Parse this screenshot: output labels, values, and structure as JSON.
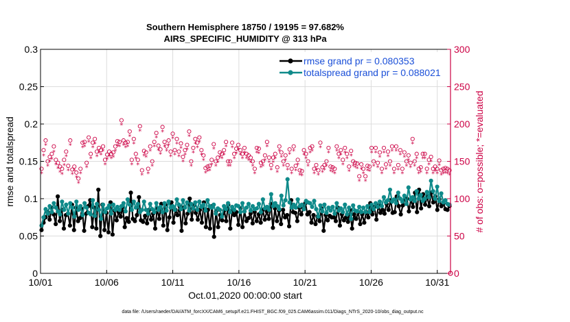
{
  "chart_data": {
    "type": "line",
    "title_line1": "Southern Hemisphere 18750 / 19195 = 97.682%",
    "title_line2": "AIRS_SPECIFIC_HUMIDITY @ 313 hPa",
    "xlabel": "Oct.01,2020 00:00:00 start",
    "ylabel_left": "rmse and totalspread",
    "ylabel_right": "# of obs: o=possible; *=evaluated",
    "xlim": [
      0,
      31
    ],
    "ylim_left": [
      0,
      0.3
    ],
    "ylim_right": [
      0,
      300
    ],
    "x_ticks": [
      0,
      5,
      10,
      15,
      20,
      25,
      30
    ],
    "x_tick_labels": [
      "10/01",
      "10/06",
      "10/11",
      "10/16",
      "10/21",
      "10/26",
      "10/31"
    ],
    "y_left_ticks": [
      0,
      0.05,
      0.1,
      0.15,
      0.2,
      0.25,
      0.3
    ],
    "y_left_tick_labels": [
      "0",
      "0.05",
      "0.1",
      "0.15",
      "0.2",
      "0.25",
      "0.3"
    ],
    "y_right_ticks": [
      0,
      50,
      100,
      150,
      200,
      250,
      300
    ],
    "y_right_tick_labels": [
      "0",
      "50",
      "100",
      "150",
      "200",
      "250",
      "300"
    ],
    "grid": true,
    "legend_position": "top-right",
    "series": [
      {
        "name": "rmse grand pr = 0.080353",
        "color": "#000000",
        "axis": "left",
        "values": [
          0.058,
          0.068,
          0.075,
          0.082,
          0.072,
          0.088,
          0.079,
          0.066,
          0.103,
          0.07,
          0.085,
          0.06,
          0.078,
          0.08,
          0.064,
          0.092,
          0.058,
          0.088,
          0.07,
          0.074,
          0.086,
          0.057,
          0.08,
          0.09,
          0.098,
          0.062,
          0.088,
          0.06,
          0.112,
          0.05,
          0.092,
          0.058,
          0.081,
          0.055,
          0.095,
          0.052,
          0.084,
          0.071,
          0.082,
          0.076,
          0.089,
          0.062,
          0.074,
          0.069,
          0.108,
          0.073,
          0.07,
          0.078,
          0.102,
          0.071,
          0.069,
          0.077,
          0.067,
          0.085,
          0.072,
          0.08,
          0.06,
          0.087,
          0.073,
          0.093,
          0.064,
          0.092,
          0.058,
          0.075,
          0.095,
          0.068,
          0.085,
          0.078,
          0.09,
          0.057,
          0.088,
          0.067,
          0.08,
          0.1,
          0.072,
          0.091,
          0.081,
          0.072,
          0.085,
          0.068,
          0.095,
          0.062,
          0.085,
          0.06,
          0.09,
          0.049,
          0.083,
          0.062,
          0.078,
          0.071,
          0.084,
          0.07,
          0.092,
          0.06,
          0.085,
          0.078,
          0.082,
          0.065,
          0.087,
          0.062,
          0.083,
          0.07,
          0.074,
          0.08,
          0.067,
          0.082,
          0.07,
          0.079,
          0.068,
          0.085,
          0.072,
          0.083,
          0.073,
          0.093,
          0.061,
          0.087,
          0.07,
          0.084,
          0.066,
          0.085,
          0.075,
          0.078,
          0.063,
          0.098,
          0.082,
          0.081,
          0.07,
          0.088,
          0.079,
          0.087,
          0.094,
          0.079,
          0.082,
          0.068,
          0.078,
          0.066,
          0.076,
          0.07,
          0.087,
          0.057,
          0.078,
          0.071,
          0.077,
          0.075,
          0.075,
          0.07,
          0.088,
          0.064,
          0.079,
          0.071,
          0.075,
          0.069,
          0.085,
          0.06,
          0.079,
          0.073,
          0.082,
          0.066,
          0.079,
          0.068,
          0.082,
          0.075,
          0.094,
          0.079,
          0.089,
          0.072,
          0.091,
          0.081,
          0.085,
          0.08,
          0.093,
          0.085,
          0.098,
          0.081,
          0.082,
          0.103,
          0.09,
          0.079,
          0.091,
          0.099,
          0.1,
          0.083,
          0.099,
          0.089,
          0.108,
          0.082,
          0.112,
          0.087,
          0.106,
          0.092,
          0.103,
          0.09,
          0.108,
          0.095,
          0.103,
          0.085,
          0.099,
          0.09,
          0.094,
          0.086,
          0.085,
          0.09
        ]
      },
      {
        "name": "totalspread grand pr = 0.088021",
        "color": "#0f8a8a",
        "axis": "left",
        "values": [
          0.064,
          0.075,
          0.086,
          0.08,
          0.09,
          0.082,
          0.094,
          0.088,
          0.083,
          0.079,
          0.096,
          0.085,
          0.092,
          0.08,
          0.094,
          0.088,
          0.076,
          0.096,
          0.085,
          0.09,
          0.078,
          0.094,
          0.088,
          0.081,
          0.079,
          0.098,
          0.077,
          0.093,
          0.085,
          0.073,
          0.092,
          0.082,
          0.087,
          0.091,
          0.08,
          0.092,
          0.085,
          0.089,
          0.085,
          0.09,
          0.094,
          0.083,
          0.099,
          0.092,
          0.085,
          0.096,
          0.088,
          0.093,
          0.082,
          0.085,
          0.096,
          0.085,
          0.08,
          0.093,
          0.086,
          0.082,
          0.094,
          0.085,
          0.089,
          0.082,
          0.094,
          0.084,
          0.096,
          0.088,
          0.09,
          0.085,
          0.099,
          0.092,
          0.086,
          0.098,
          0.088,
          0.095,
          0.084,
          0.093,
          0.087,
          0.095,
          0.085,
          0.096,
          0.089,
          0.092,
          0.084,
          0.098,
          0.09,
          0.088,
          0.092,
          0.08,
          0.087,
          0.085,
          0.076,
          0.09,
          0.086,
          0.094,
          0.082,
          0.089,
          0.085,
          0.091,
          0.09,
          0.082,
          0.094,
          0.083,
          0.088,
          0.093,
          0.084,
          0.09,
          0.086,
          0.087,
          0.093,
          0.082,
          0.099,
          0.087,
          0.089,
          0.085,
          0.106,
          0.09,
          0.094,
          0.09,
          0.086,
          0.104,
          0.091,
          0.098,
          0.126,
          0.095,
          0.088,
          0.092,
          0.088,
          0.099,
          0.09,
          0.092,
          0.086,
          0.097,
          0.095,
          0.094,
          0.089,
          0.097,
          0.086,
          0.076,
          0.091,
          0.083,
          0.092,
          0.081,
          0.088,
          0.084,
          0.089,
          0.08,
          0.094,
          0.084,
          0.087,
          0.082,
          0.092,
          0.079,
          0.088,
          0.073,
          0.091,
          0.084,
          0.083,
          0.089,
          0.082,
          0.088,
          0.082,
          0.09,
          0.082,
          0.092,
          0.086,
          0.094,
          0.089,
          0.096,
          0.09,
          0.102,
          0.095,
          0.098,
          0.112,
          0.096,
          0.099,
          0.094,
          0.108,
          0.1,
          0.096,
          0.104,
          0.093,
          0.115,
          0.099,
          0.102,
          0.097,
          0.11,
          0.1,
          0.105,
          0.097,
          0.1,
          0.109,
          0.102,
          0.124,
          0.11,
          0.1,
          0.116,
          0.097,
          0.107,
          0.095,
          0.098,
          0.093,
          0.092
        ]
      },
      {
        "name": "possible",
        "color": "#cc0044",
        "axis": "right",
        "marker": "o",
        "values": [
          140,
          165,
          178,
          150,
          156,
          160,
          170,
          152,
          148,
          143,
          140,
          152,
          163,
          144,
          178,
          139,
          143,
          135,
          127,
          140,
          175,
          176,
          148,
          182,
          160,
          175,
          180,
          163,
          168,
          165,
          170,
          152,
          159,
          163,
          160,
          162,
          170,
          177,
          176,
          205,
          178,
          175,
          176,
          190,
          152,
          180,
          160,
          152,
          197,
          138,
          164,
          162,
          140,
          170,
          150,
          176,
          188,
          171,
          166,
          196,
          176,
          170,
          178,
          163,
          187,
          165,
          180,
          163,
          174,
          156,
          165,
          172,
          190,
          150,
          168,
          180,
          175,
          182,
          165,
          158,
          141,
          143,
          144,
          152,
          173,
          150,
          155,
          162,
          160,
          165,
          176,
          150,
          150,
          175,
          160,
          167,
          172,
          165,
          160,
          168,
          160,
          158,
          155,
          150,
          140,
          168,
          167,
          148,
          150,
          158,
          176,
          155,
          145,
          155,
          160,
          142,
          170,
          162,
          150,
          158,
          145,
          166,
          140,
          170,
          144,
          152,
          138,
          137,
          165,
          160,
          150,
          168,
          170,
          140,
          145,
          138,
          175,
          142,
          145,
          150,
          168,
          143,
          142,
          140,
          170,
          160,
          165,
          152,
          168,
          160,
          143,
          164,
          150,
          148,
          147,
          130,
          146,
          140,
          130,
          144,
          143,
          168,
          150,
          168,
          148,
          162,
          140,
          168,
          146,
          163,
          150,
          170,
          140,
          170,
          145,
          165,
          140,
          162,
          150,
          158,
          148,
          180,
          150,
          160,
          140,
          142,
          160,
          160,
          140,
          152,
          156,
          140,
          143,
          140,
          151,
          138,
          140,
          141,
          140,
          138
        ],
        "note": "approximate reading of scattered circle markers"
      },
      {
        "name": "evaluated",
        "color": "#cc0044",
        "axis": "right",
        "marker": "*",
        "values": [
          134,
          158,
          172,
          144,
          150,
          153,
          163,
          146,
          141,
          136,
          133,
          145,
          157,
          138,
          172,
          133,
          138,
          129,
          121,
          134,
          169,
          170,
          142,
          176,
          154,
          169,
          174,
          157,
          162,
          159,
          164,
          146,
          153,
          157,
          154,
          156,
          164,
          171,
          170,
          199,
          172,
          169,
          170,
          184,
          146,
          174,
          154,
          146,
          191,
          132,
          158,
          156,
          134,
          164,
          144,
          170,
          182,
          165,
          160,
          190,
          170,
          164,
          172,
          157,
          181,
          159,
          174,
          157,
          168,
          150,
          159,
          166,
          184,
          144,
          162,
          174,
          169,
          176,
          159,
          152,
          135,
          137,
          138,
          146,
          167,
          144,
          149,
          156,
          154,
          159,
          170,
          144,
          144,
          169,
          154,
          161,
          166,
          159,
          154,
          162,
          154,
          152,
          149,
          144,
          134,
          162,
          161,
          142,
          144,
          152,
          170,
          149,
          139,
          149,
          154,
          136,
          164,
          156,
          144,
          152,
          139,
          160,
          134,
          164,
          138,
          146,
          132,
          131,
          159,
          154,
          144,
          162,
          164,
          134,
          139,
          132,
          169,
          136,
          139,
          144,
          162,
          137,
          136,
          134,
          164,
          154,
          159,
          146,
          162,
          154,
          137,
          158,
          144,
          142,
          141,
          124,
          140,
          134,
          124,
          138,
          137,
          162,
          144,
          162,
          142,
          156,
          134,
          162,
          140,
          157,
          144,
          164,
          134,
          164,
          139,
          159,
          134,
          156,
          144,
          152,
          142,
          174,
          144,
          154,
          134,
          136,
          154,
          154,
          134,
          146,
          150,
          134,
          137,
          134,
          145,
          132,
          134,
          135,
          134,
          132
        ],
        "note": "approximate reading of scattered asterisk markers"
      }
    ]
  },
  "footer": "data file: /Users/raeder/DAI/ATM_forcXX/CAM6_setup/f.e21.FHIST_BGC.f09_025.CAM6assim.011/Diags_NTrS_2020-10/obs_diag_output.nc"
}
